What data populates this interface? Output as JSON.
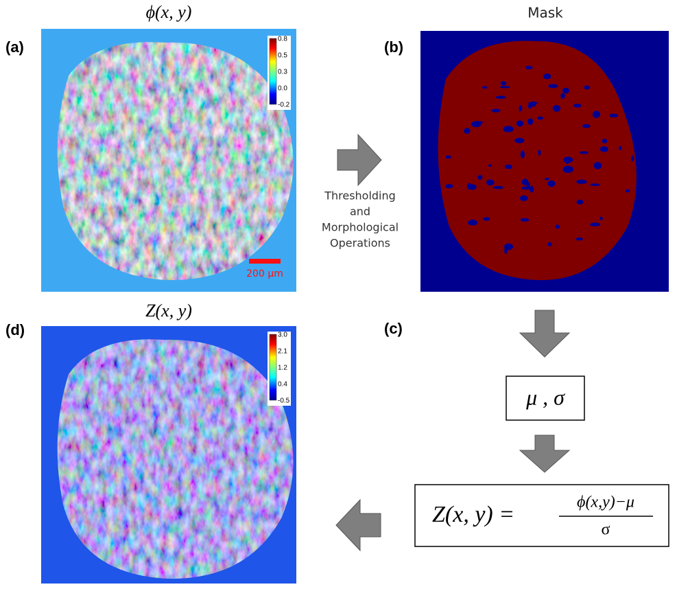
{
  "panel_a": {
    "label": "(a)",
    "title": "ϕ(x, y)",
    "colorbar": [
      "0.8",
      "0.5",
      "0.3",
      "0.0",
      "-0.2"
    ],
    "scale_bar": "200 μm"
  },
  "panel_b": {
    "label": "(b)",
    "title": "Mask"
  },
  "step_ab": [
    "Thresholding",
    "and",
    "Morphological",
    "Operations"
  ],
  "panel_c": {
    "label": "(c)",
    "stats": "μ , σ",
    "formula": {
      "lhs": "Z(x, y) =",
      "numerator": "ϕ(x,y)−μ",
      "denominator": "σ"
    }
  },
  "panel_d": {
    "label": "(d)",
    "title": "Z(x, y)",
    "colorbar": [
      "3.0",
      "2.1",
      "1.2",
      "0.4",
      "-0.5"
    ]
  }
}
